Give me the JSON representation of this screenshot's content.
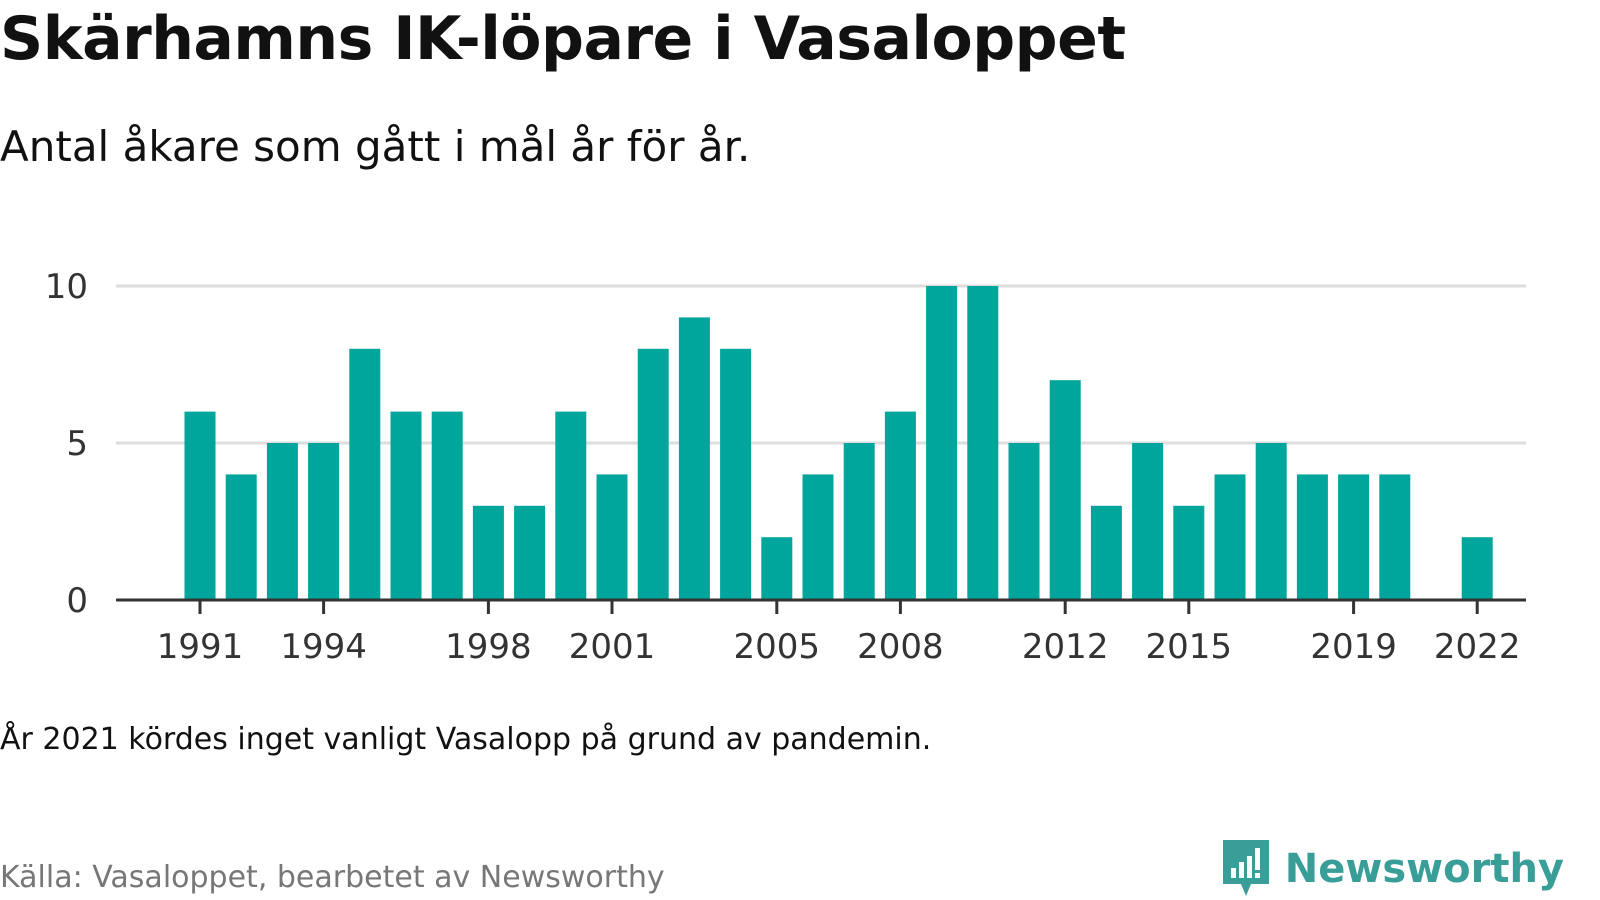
{
  "header": {
    "title": "Skärhamns IK-löpare i Vasaloppet",
    "subtitle": "Antal åkare som gått i mål år för år."
  },
  "footer": {
    "note": "År 2021 kördes inget vanligt Vasalopp på grund av pandemin.",
    "source": "Källa: Vasaloppet, bearbetet av Newsworthy",
    "brand": "Newsworthy",
    "brand_icon": "newsworthy-logo-icon"
  },
  "colors": {
    "bar": "#00a59b",
    "grid": "#dddddd",
    "axis": "#333333",
    "brand": "#3a9e98"
  },
  "chart_data": {
    "type": "bar",
    "title": "Skärhamns IK-löpare i Vasaloppet",
    "subtitle": "Antal åkare som gått i mål år för år.",
    "xlabel": "",
    "ylabel": "",
    "ylim": [
      0,
      10
    ],
    "yticks": [
      0,
      5,
      10
    ],
    "xticks": [
      "1991",
      "1994",
      "1998",
      "2001",
      "2005",
      "2008",
      "2012",
      "2015",
      "2019",
      "2022"
    ],
    "grid": true,
    "legend": "none",
    "categories": [
      "1991",
      "1992",
      "1993",
      "1994",
      "1995",
      "1996",
      "1997",
      "1998",
      "1999",
      "2000",
      "2001",
      "2002",
      "2003",
      "2004",
      "2005",
      "2006",
      "2007",
      "2008",
      "2009",
      "2010",
      "2011",
      "2012",
      "2013",
      "2014",
      "2015",
      "2016",
      "2017",
      "2018",
      "2019",
      "2020",
      "2021",
      "2022"
    ],
    "values": [
      6,
      4,
      5,
      5,
      8,
      6,
      6,
      3,
      3,
      6,
      4,
      8,
      9,
      8,
      2,
      4,
      5,
      6,
      10,
      10,
      5,
      7,
      3,
      5,
      3,
      4,
      5,
      4,
      4,
      4,
      0,
      2
    ]
  }
}
